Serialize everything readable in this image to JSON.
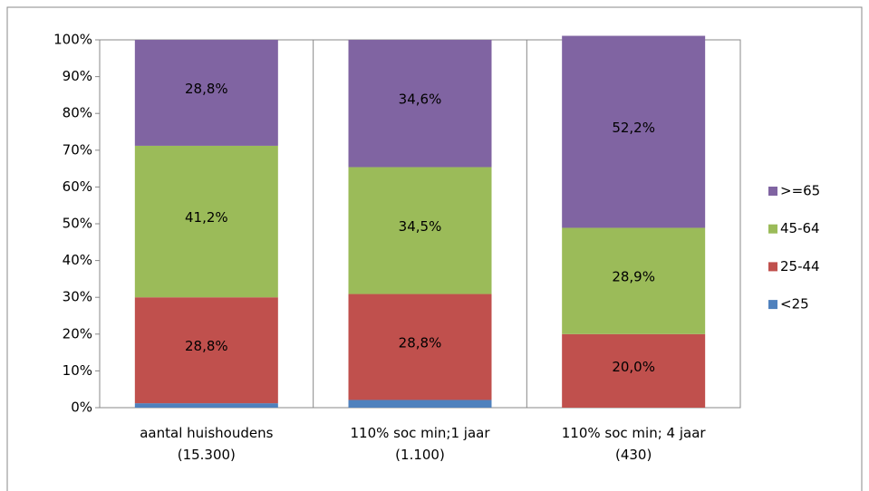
{
  "chart_data": {
    "type": "stacked_bar",
    "categories": [
      "aantal huishoudens (15.300)",
      "110% soc min;1 jaar (1.100)",
      "110% soc min; 4 jaar (430)"
    ],
    "series": [
      {
        "name": "<25",
        "color": "#4f81bd",
        "values": [
          1.2,
          2.1,
          0
        ],
        "value_labels": [
          null,
          null,
          null
        ]
      },
      {
        "name": "25-44",
        "color": "#c0504d",
        "values": [
          28.8,
          28.8,
          20.0
        ],
        "value_labels": [
          "28,8%",
          "28,8%",
          "20,0%"
        ]
      },
      {
        "name": "45-64",
        "color": "#9bbb59",
        "values": [
          41.2,
          34.5,
          28.9
        ],
        "value_labels": [
          "41,2%",
          "34,5%",
          "28,9%"
        ]
      },
      {
        "name": ">=65",
        "color": "#8064a2",
        "values": [
          28.8,
          34.6,
          52.2
        ],
        "value_labels": [
          "28,8%",
          "34,6%",
          "52,2%"
        ]
      }
    ],
    "ylim": [
      0,
      100
    ],
    "yticks": [
      {
        "value": 0,
        "label": "0%"
      },
      {
        "value": 10,
        "label": "10%"
      },
      {
        "value": 20,
        "label": "20%"
      },
      {
        "value": 30,
        "label": "30%"
      },
      {
        "value": 40,
        "label": "40%"
      },
      {
        "value": 50,
        "label": "50%"
      },
      {
        "value": 60,
        "label": "60%"
      },
      {
        "value": 70,
        "label": "70%"
      },
      {
        "value": 80,
        "label": "80%"
      },
      {
        "value": 90,
        "label": "90%"
      },
      {
        "value": 100,
        "label": "100%"
      }
    ],
    "grid": false,
    "legend": "right"
  }
}
